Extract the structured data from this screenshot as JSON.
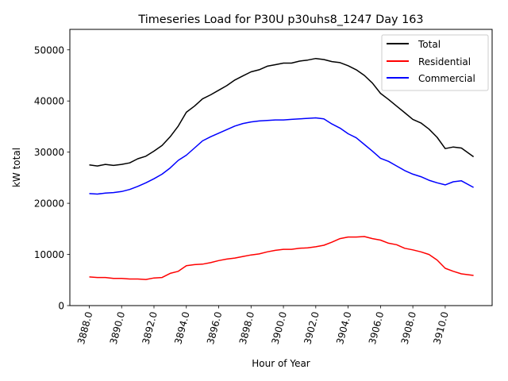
{
  "chart_data": {
    "type": "line",
    "title": "Timeseries Load for P30U p30uhs8_1247  Day 163",
    "xlabel": "Hour of Year",
    "ylabel": "kW total",
    "xlim": [
      3886.8,
      3912.9
    ],
    "ylim": [
      0,
      54000
    ],
    "xticks": [
      3888,
      3890,
      3892,
      3894,
      3896,
      3898,
      3900,
      3902,
      3904,
      3906,
      3908,
      3910
    ],
    "xtick_labels": [
      "3888.0",
      "3890.0",
      "3892.0",
      "3894.0",
      "3896.0",
      "3898.0",
      "3900.0",
      "3902.0",
      "3904.0",
      "3906.0",
      "3908.0",
      "3910.0"
    ],
    "yticks": [
      0,
      10000,
      20000,
      30000,
      40000,
      50000
    ],
    "ytick_labels": [
      "0",
      "10000",
      "20000",
      "30000",
      "40000",
      "50000"
    ],
    "grid": false,
    "legend_position": "top-right",
    "x": [
      3888.0,
      3888.5,
      3889.0,
      3889.5,
      3890.0,
      3890.5,
      3891.0,
      3891.5,
      3892.0,
      3892.5,
      3893.0,
      3893.5,
      3894.0,
      3894.5,
      3895.0,
      3895.5,
      3896.0,
      3896.5,
      3897.0,
      3897.5,
      3898.0,
      3898.5,
      3899.0,
      3899.5,
      3900.0,
      3900.5,
      3901.0,
      3901.5,
      3902.0,
      3902.5,
      3903.0,
      3903.5,
      3904.0,
      3904.5,
      3905.0,
      3905.5,
      3906.0,
      3906.5,
      3907.0,
      3907.5,
      3908.0,
      3908.5,
      3909.0,
      3909.5,
      3910.0,
      3910.5,
      3911.0,
      3911.75
    ],
    "series": [
      {
        "name": "Total",
        "color": "#000000",
        "values": [
          27500,
          27300,
          27600,
          27400,
          27600,
          27900,
          28700,
          29200,
          30200,
          31300,
          33000,
          35100,
          37800,
          39000,
          40400,
          41200,
          42100,
          43000,
          44100,
          44900,
          45700,
          46100,
          46800,
          47100,
          47400,
          47400,
          47800,
          48000,
          48300,
          48100,
          47700,
          47500,
          46900,
          46100,
          45000,
          43500,
          41500,
          40300,
          39000,
          37700,
          36400,
          35700,
          34500,
          32900,
          30700,
          31000,
          30800,
          29100
        ]
      },
      {
        "name": "Residential",
        "color": "#ff0000",
        "values": [
          5600,
          5500,
          5500,
          5300,
          5300,
          5200,
          5200,
          5100,
          5400,
          5500,
          6300,
          6700,
          7800,
          8000,
          8100,
          8400,
          8800,
          9100,
          9300,
          9600,
          9900,
          10100,
          10500,
          10800,
          11000,
          11000,
          11200,
          11300,
          11500,
          11800,
          12400,
          13100,
          13400,
          13400,
          13500,
          13100,
          12800,
          12200,
          11900,
          11200,
          10900,
          10500,
          10000,
          8900,
          7300,
          6700,
          6200,
          5900
        ]
      },
      {
        "name": "Commercial",
        "color": "#0000ff",
        "values": [
          21900,
          21800,
          22000,
          22100,
          22300,
          22700,
          23300,
          24000,
          24800,
          25700,
          26900,
          28400,
          29400,
          30800,
          32200,
          33000,
          33700,
          34400,
          35100,
          35600,
          35900,
          36100,
          36200,
          36300,
          36300,
          36400,
          36500,
          36600,
          36700,
          36500,
          35500,
          34700,
          33600,
          32800,
          31500,
          30200,
          28800,
          28200,
          27300,
          26400,
          25700,
          25200,
          24500,
          24000,
          23600,
          24200,
          24400,
          23100
        ]
      }
    ]
  }
}
